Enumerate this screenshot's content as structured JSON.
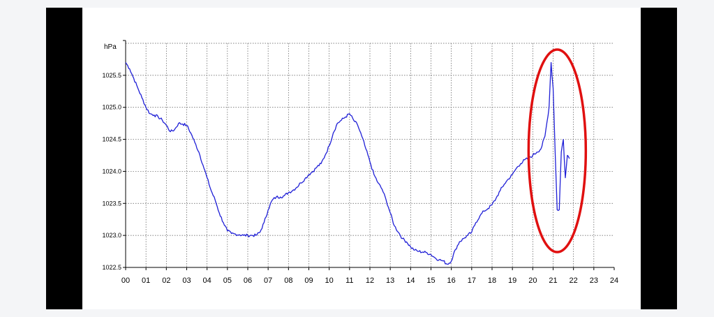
{
  "chart_data": {
    "type": "line",
    "ylabel": "hPa",
    "ylim": [
      1022.5,
      1026.0
    ],
    "xlim": [
      0,
      24
    ],
    "yticks": [
      "1022.5",
      "1023.0",
      "1023.5",
      "1024.0",
      "1024.5",
      "1025.0",
      "1025.5"
    ],
    "yticks_values": [
      1022.5,
      1023.0,
      1023.5,
      1024.0,
      1024.5,
      1025.0,
      1025.5
    ],
    "xticks": [
      "00",
      "01",
      "02",
      "03",
      "04",
      "05",
      "06",
      "07",
      "08",
      "09",
      "10",
      "11",
      "12",
      "13",
      "14",
      "15",
      "16",
      "17",
      "18",
      "19",
      "20",
      "21",
      "22",
      "23",
      "24"
    ],
    "grid": true,
    "line_color": "#1f1fd6",
    "annotation_color": "#e01010",
    "series": [
      {
        "x": [
          0,
          0.2,
          0.4,
          0.6,
          0.8,
          1.0,
          1.2,
          1.4,
          1.6,
          1.8,
          2.0,
          2.2,
          2.4,
          2.6,
          2.8,
          3.0,
          3.2,
          3.4,
          3.6,
          3.8,
          4.0,
          4.2,
          4.4,
          4.6,
          4.8,
          5.0,
          5.2,
          5.4,
          5.6,
          5.8,
          6.0,
          6.2,
          6.4,
          6.6,
          6.8,
          7.0,
          7.2,
          7.4,
          7.6,
          7.8,
          8.0,
          8.2,
          8.4,
          8.6,
          8.8,
          9.0,
          9.2,
          9.4,
          9.6,
          9.8,
          10.0,
          10.2,
          10.4,
          10.6,
          10.8,
          11.0,
          11.2,
          11.4,
          11.6,
          11.8,
          12.0,
          12.2,
          12.4,
          12.6,
          12.8,
          13.0,
          13.2,
          13.4,
          13.6,
          13.8,
          14.0,
          14.2,
          14.4,
          14.6,
          14.8,
          15.0,
          15.2,
          15.4,
          15.6,
          15.8,
          16.0,
          16.2,
          16.4,
          16.6,
          16.8,
          17.0,
          17.2,
          17.4,
          17.6,
          17.8,
          18.0,
          18.2,
          18.4,
          18.6,
          18.8,
          19.0,
          19.2,
          19.4,
          19.6,
          19.8,
          20.0,
          20.2,
          20.4,
          20.6,
          20.8,
          20.9,
          21.0,
          21.1,
          21.2,
          21.3,
          21.4,
          21.5,
          21.6,
          21.7,
          21.8
        ],
        "values": [
          1025.7,
          1025.6,
          1025.45,
          1025.3,
          1025.15,
          1025.0,
          1024.9,
          1024.88,
          1024.85,
          1024.8,
          1024.72,
          1024.62,
          1024.65,
          1024.75,
          1024.74,
          1024.72,
          1024.6,
          1024.45,
          1024.3,
          1024.1,
          1023.9,
          1023.7,
          1023.55,
          1023.35,
          1023.2,
          1023.07,
          1023.03,
          1023.02,
          1023.01,
          1023.0,
          1023.0,
          1023.0,
          1023.0,
          1023.05,
          1023.2,
          1023.4,
          1023.55,
          1023.6,
          1023.6,
          1023.62,
          1023.67,
          1023.7,
          1023.75,
          1023.82,
          1023.88,
          1023.95,
          1024.0,
          1024.07,
          1024.12,
          1024.25,
          1024.4,
          1024.6,
          1024.75,
          1024.8,
          1024.85,
          1024.9,
          1024.8,
          1024.72,
          1024.55,
          1024.35,
          1024.15,
          1023.95,
          1023.82,
          1023.72,
          1023.55,
          1023.35,
          1023.15,
          1023.05,
          1022.95,
          1022.9,
          1022.82,
          1022.77,
          1022.75,
          1022.74,
          1022.73,
          1022.7,
          1022.65,
          1022.62,
          1022.6,
          1022.55,
          1022.6,
          1022.78,
          1022.9,
          1022.95,
          1023.0,
          1023.05,
          1023.2,
          1023.3,
          1023.38,
          1023.42,
          1023.48,
          1023.58,
          1023.7,
          1023.8,
          1023.88,
          1023.95,
          1024.05,
          1024.12,
          1024.18,
          1024.2,
          1024.25,
          1024.3,
          1024.35,
          1024.55,
          1025.0,
          1025.7,
          1025.3,
          1024.3,
          1023.4,
          1023.4,
          1024.3,
          1024.5,
          1023.9,
          1024.25,
          1024.2
        ]
      }
    ]
  }
}
